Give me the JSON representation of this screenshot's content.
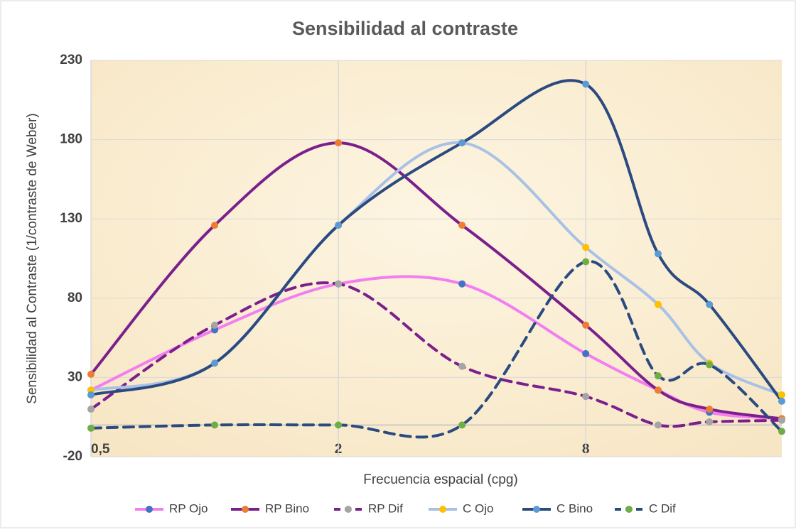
{
  "chart_data": {
    "type": "line",
    "title": "Sensibilidad al contraste",
    "x_label": "Frecuencia espacial (cpg)",
    "y_label": "Sensibilidad al Contraste (1/contraste de Weber)",
    "x": [
      0.5,
      1,
      2,
      4,
      8,
      12,
      16,
      24
    ],
    "x_scale": "log2",
    "xlim": [
      0.5,
      24
    ],
    "xticks": [
      {
        "value": 0.5,
        "label": "0,5"
      },
      2,
      8
    ],
    "ylim": [
      -20,
      230
    ],
    "yticks": [
      -20,
      30,
      80,
      130,
      180,
      230
    ],
    "grid": true,
    "legend": "bottom",
    "series": [
      {
        "name": "RP Ojo",
        "color": "#f27ef0",
        "marker_color": "#4472c4",
        "dash": false,
        "values": [
          22,
          60,
          89,
          89,
          45,
          22,
          8,
          4
        ]
      },
      {
        "name": "RP Bino",
        "color": "#7b1f8c",
        "marker_color": "#ed7d31",
        "dash": false,
        "values": [
          32,
          126,
          178,
          126,
          63,
          22,
          10,
          4
        ]
      },
      {
        "name": "RP Dif",
        "color": "#7b1f8c",
        "marker_color": "#a5a5a5",
        "dash": true,
        "values": [
          10,
          63,
          89,
          37,
          18,
          0,
          2,
          3
        ]
      },
      {
        "name": "C Ojo",
        "color": "#a9c1e6",
        "marker_color": "#ffc000",
        "dash": false,
        "values": [
          22,
          39,
          126,
          178,
          112,
          76,
          39,
          19
        ]
      },
      {
        "name": "C Bino",
        "color": "#2b4a80",
        "marker_color": "#5b9bd5",
        "dash": false,
        "values": [
          19,
          39,
          126,
          178,
          215,
          108,
          76,
          15
        ]
      },
      {
        "name": "C Dif",
        "color": "#2b4a80",
        "marker_color": "#70ad47",
        "dash": true,
        "values": [
          -2,
          0,
          0,
          0,
          103,
          31,
          38,
          -4
        ]
      }
    ]
  }
}
